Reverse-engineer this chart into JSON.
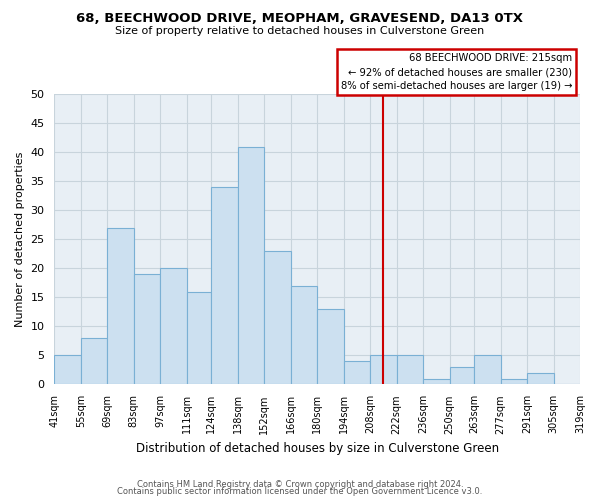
{
  "title": "68, BEECHWOOD DRIVE, MEOPHAM, GRAVESEND, DA13 0TX",
  "subtitle": "Size of property relative to detached houses in Culverstone Green",
  "xlabel": "Distribution of detached houses by size in Culverstone Green",
  "ylabel": "Number of detached properties",
  "bar_color": "#cce0f0",
  "bar_edge_color": "#7ab0d4",
  "plot_bg_color": "#e8eff5",
  "fig_bg_color": "#ffffff",
  "grid_color": "#c8d4dc",
  "bin_edges": [
    41,
    55,
    69,
    83,
    97,
    111,
    124,
    138,
    152,
    166,
    180,
    194,
    208,
    222,
    236,
    250,
    263,
    277,
    291,
    305,
    319
  ],
  "bin_labels": [
    "41sqm",
    "55sqm",
    "69sqm",
    "83sqm",
    "97sqm",
    "111sqm",
    "124sqm",
    "138sqm",
    "152sqm",
    "166sqm",
    "180sqm",
    "194sqm",
    "208sqm",
    "222sqm",
    "236sqm",
    "250sqm",
    "263sqm",
    "277sqm",
    "291sqm",
    "305sqm",
    "319sqm"
  ],
  "counts": [
    5,
    8,
    27,
    19,
    20,
    16,
    34,
    41,
    23,
    17,
    13,
    4,
    5,
    5,
    1,
    3,
    5,
    1,
    2,
    0
  ],
  "property_line_x": 215,
  "property_line_color": "#cc0000",
  "ylim": [
    0,
    50
  ],
  "yticks": [
    0,
    5,
    10,
    15,
    20,
    25,
    30,
    35,
    40,
    45,
    50
  ],
  "annotation_title": "68 BEECHWOOD DRIVE: 215sqm",
  "annotation_line1": "← 92% of detached houses are smaller (230)",
  "annotation_line2": "8% of semi-detached houses are larger (19) →",
  "annotation_box_color": "white",
  "annotation_box_edge": "#cc0000",
  "footnote1": "Contains HM Land Registry data © Crown copyright and database right 2024.",
  "footnote2": "Contains public sector information licensed under the Open Government Licence v3.0."
}
